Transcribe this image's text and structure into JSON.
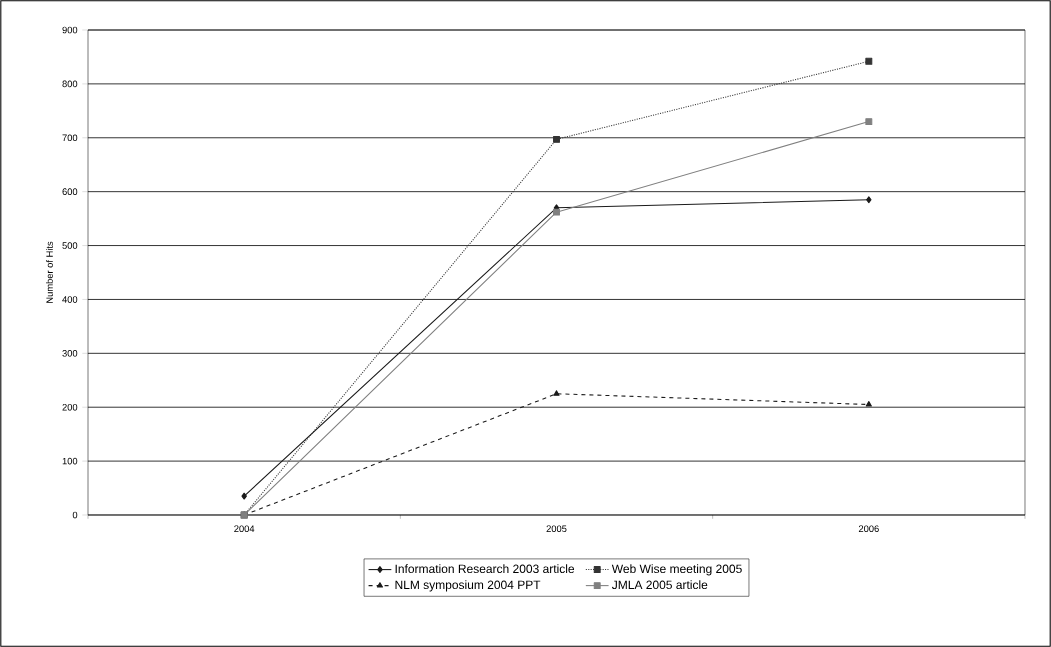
{
  "chart_data": {
    "type": "line",
    "ylabel": "Number of Hits",
    "categories": [
      "2004",
      "2005",
      "2006"
    ],
    "ylim": [
      0,
      900
    ],
    "yticks": [
      0,
      100,
      200,
      300,
      400,
      500,
      600,
      700,
      800,
      900
    ],
    "grid": "y",
    "legend": "bottom",
    "series": [
      {
        "name": "Information Research 2003 article",
        "color": "#1a1a1a",
        "values": [
          35,
          570,
          585
        ],
        "marker": "diamond",
        "line_style": "solid"
      },
      {
        "name": "Web Wise meeting 2005",
        "color": "#333333",
        "values": [
          0,
          697,
          842
        ],
        "marker": "square",
        "line_style": "dotted"
      },
      {
        "name": "NLM symposium 2004 PPT",
        "color": "#1a1a1a",
        "values": [
          0,
          225,
          205
        ],
        "marker": "triangle",
        "line_style": "dashed"
      },
      {
        "name": "JMLA 2005 article",
        "color": "#808080",
        "values": [
          0,
          562,
          730
        ],
        "marker": "square",
        "line_style": "solid"
      }
    ]
  }
}
